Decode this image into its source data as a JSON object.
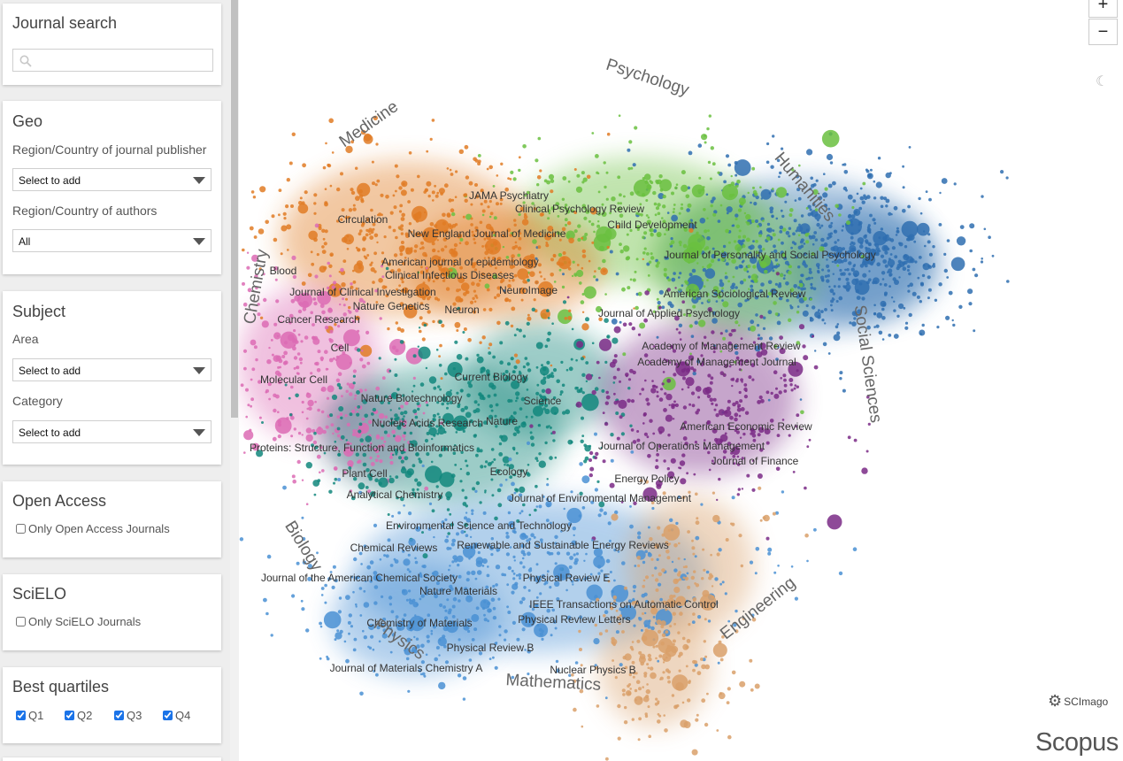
{
  "sidebar": {
    "journal_search": {
      "title": "Journal search",
      "placeholder": ""
    },
    "geo": {
      "title": "Geo",
      "publisher_label": "Region/Country of journal publisher",
      "publisher_value": "Select to add",
      "authors_label": "Region/Country of authors",
      "authors_value": "All"
    },
    "subject": {
      "title": "Subject",
      "area_label": "Area",
      "area_value": "Select to add",
      "category_label": "Category",
      "category_value": "Select to add"
    },
    "open_access": {
      "title": "Open Access",
      "checkbox_label": "Only Open Access Journals",
      "checked": false
    },
    "scielo": {
      "title": "SciELO",
      "checkbox_label": "Only SciELO Journals",
      "checked": false
    },
    "quartiles": {
      "title": "Best quartiles",
      "items": [
        {
          "label": "Q1",
          "checked": true
        },
        {
          "label": "Q2",
          "checked": true
        },
        {
          "label": "Q3",
          "checked": true
        },
        {
          "label": "Q4",
          "checked": true
        }
      ]
    }
  },
  "map": {
    "zoom_in": "+",
    "zoom_out": "−",
    "dark_mode_icon": "moon-icon",
    "scimago_logo": "SCImago",
    "scopus_logo": "Scopus",
    "cluster_colors": {
      "medicine": "#e07b24",
      "psychology": "#6abf40",
      "social_sciences": "#2f6fb0",
      "economics": "#7a2a86",
      "chemistry": "#dc6bb4",
      "biology": "#12877c",
      "physics": "#4a90d4",
      "engineering": "#d9a06a"
    },
    "subject_labels": [
      "Psychology",
      "Medicine",
      "Humanities",
      "Chemistry",
      "Social Sciences",
      "Biology",
      "Physics",
      "Mathematics",
      "Engineering"
    ],
    "journal_labels": [
      "JAMA Psychiatry",
      "Clinical Psychology Review",
      "Circulation",
      "Child Development",
      "New England Journal of Medicine",
      "Journal of Personality and Social Psychology",
      "American journal of epidemiology",
      "Blood",
      "Clinical Infectious Diseases",
      "NeuroImage",
      "Journal of Clinical Investigation",
      "American Sociological Review",
      "Nature Genetics",
      "Neuron",
      "Journal of Applied Psychology",
      "Cancer Research",
      "Academy of Management Review",
      "Cell",
      "Academy of Management Journal",
      "Current Biology",
      "Molecular Cell",
      "Nature Biotechnology",
      "Science",
      "Nature",
      "Nucleic Acids Research",
      "American Economic Review",
      "Journal of Operations Management",
      "Proteins: Structure, Function and Bioinformatics",
      "Journal of Finance",
      "Plant Cell",
      "Ecology",
      "Energy Policy",
      "Analytical Chemistry",
      "Journal of Environmental Management",
      "Environmental Science and Technology",
      "Chemical Reviews",
      "Renewable and Sustainable Energy Reviews",
      "Journal of the American Chemical Society",
      "Physical Review E",
      "Nature Materials",
      "IEEE Transactions on Automatic Control",
      "Physical Review Letters",
      "Chemistry of Materials",
      "Physical Review B",
      "Journal of Materials Chemistry A",
      "Nuclear Physics B"
    ]
  }
}
